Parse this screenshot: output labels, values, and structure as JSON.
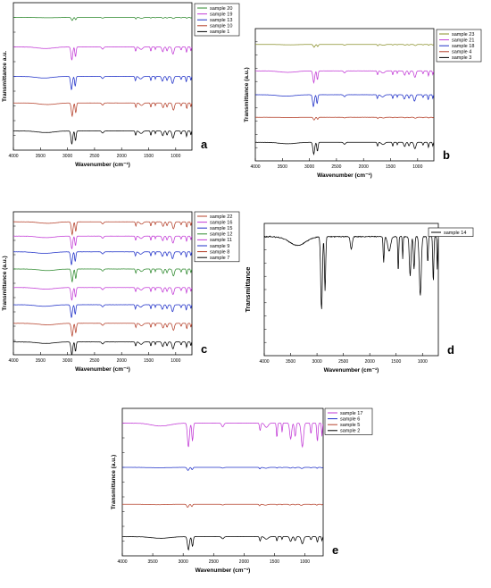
{
  "figure": {
    "panels": [
      {
        "id": "a",
        "letter": "a",
        "xlabel": "Wavenumber (cm⁻¹)",
        "ylabel": "Transmittance a.u.",
        "xticks": [
          "4000",
          "3500",
          "3000",
          "2500",
          "2000",
          "1500",
          "1000"
        ]
      },
      {
        "id": "b",
        "letter": "b",
        "xlabel": "Wavenumber (cm⁻¹)",
        "ylabel": "Transmittance (a.u.)",
        "xticks": [
          "4000",
          "3500",
          "3000",
          "2500",
          "2000",
          "1500",
          "1000"
        ]
      },
      {
        "id": "c",
        "letter": "c",
        "xlabel": "Wavenumber (cm⁻¹)",
        "ylabel": "Transmittance (a.u.)",
        "xticks": [
          "4000",
          "3500",
          "3000",
          "2500",
          "2000",
          "1500",
          "1000"
        ]
      },
      {
        "id": "d",
        "letter": "d",
        "xlabel": "Wavenumber (cm⁻¹)",
        "ylabel": "Transmittance",
        "xticks": [
          "4000",
          "3500",
          "3000",
          "2500",
          "2000",
          "1500",
          "1000"
        ]
      },
      {
        "id": "e",
        "letter": "e",
        "xlabel": "Wavenumber (cm⁻¹)",
        "ylabel": "Transmittance (a.u.)",
        "xticks": [
          "4000",
          "3500",
          "3000",
          "2500",
          "2000",
          "1500",
          "1000"
        ]
      }
    ]
  },
  "colors": {
    "black": "#000000",
    "red": "#b5402a",
    "blue": "#1f30c8",
    "magenta": "#c23ad6",
    "green": "#2f8a2f",
    "olive": "#8a8f2a"
  },
  "chart_data": [
    {
      "panel": "a",
      "type": "line",
      "xlim": [
        4000,
        700
      ],
      "xlabel": "Wavenumber (cm⁻¹)",
      "ylabel": "Transmittance a.u.",
      "legend_position": "top-right",
      "series": [
        {
          "name": "sample 20",
          "color": "#2f8a2f",
          "baseline": 0.9,
          "style": "flat"
        },
        {
          "name": "sample 19",
          "color": "#c23ad6",
          "baseline": 0.7,
          "style": "mid"
        },
        {
          "name": "sample 13",
          "color": "#1f30c8",
          "baseline": 0.5,
          "style": "mid"
        },
        {
          "name": "sample 10",
          "color": "#b5402a",
          "baseline": 0.32,
          "style": "mid"
        },
        {
          "name": "sample 1",
          "color": "#000000",
          "baseline": 0.13,
          "style": "mid"
        }
      ]
    },
    {
      "panel": "b",
      "type": "line",
      "xlim": [
        4000,
        700
      ],
      "xlabel": "Wavenumber (cm⁻¹)",
      "ylabel": "Transmittance (a.u.)",
      "legend_position": "top-right",
      "series": [
        {
          "name": "sample 23",
          "color": "#8a8f2a",
          "baseline": 0.88,
          "style": "flat"
        },
        {
          "name": "sample 21",
          "color": "#c23ad6",
          "baseline": 0.68,
          "style": "mid"
        },
        {
          "name": "sample 18",
          "color": "#1f30c8",
          "baseline": 0.5,
          "style": "mid"
        },
        {
          "name": "sample 4",
          "color": "#b5402a",
          "baseline": 0.33,
          "style": "flat"
        },
        {
          "name": "sample 3",
          "color": "#000000",
          "baseline": 0.14,
          "style": "mid"
        }
      ]
    },
    {
      "panel": "c",
      "type": "line",
      "xlim": [
        4000,
        700
      ],
      "xlabel": "Wavenumber (cm⁻¹)",
      "ylabel": "Transmittance (a.u.)",
      "legend_position": "top-right",
      "series": [
        {
          "name": "sample 22",
          "color": "#b5402a",
          "baseline": 0.93,
          "style": "mid"
        },
        {
          "name": "sample 16",
          "color": "#c23ad6",
          "baseline": 0.83,
          "style": "mid"
        },
        {
          "name": "sample 15",
          "color": "#1f30c8",
          "baseline": 0.72,
          "style": "mid"
        },
        {
          "name": "sample 12",
          "color": "#2f8a2f",
          "baseline": 0.6,
          "style": "mid"
        },
        {
          "name": "sample 11",
          "color": "#c23ad6",
          "baseline": 0.47,
          "style": "mid"
        },
        {
          "name": "sample 9",
          "color": "#1f30c8",
          "baseline": 0.35,
          "style": "mid"
        },
        {
          "name": "sample 8",
          "color": "#b5402a",
          "baseline": 0.22,
          "style": "mid"
        },
        {
          "name": "sample 7",
          "color": "#000000",
          "baseline": 0.09,
          "style": "mid"
        }
      ]
    },
    {
      "panel": "d",
      "type": "line",
      "xlim": [
        4000,
        700
      ],
      "xlabel": "Wavenumber (cm⁻¹)",
      "ylabel": "Transmittance",
      "legend_position": "top-right",
      "series": [
        {
          "name": "sample 14",
          "color": "#000000",
          "baseline": 0.9,
          "style": "deep"
        }
      ]
    },
    {
      "panel": "e",
      "type": "line",
      "xlim": [
        4000,
        700
      ],
      "xlabel": "Wavenumber (cm⁻¹)",
      "ylabel": "Transmittance (a.u.)",
      "legend_position": "top-right",
      "series": [
        {
          "name": "sample 17",
          "color": "#c23ad6",
          "baseline": 0.9,
          "style": "strong"
        },
        {
          "name": "sample 6",
          "color": "#1f30c8",
          "baseline": 0.6,
          "style": "flat"
        },
        {
          "name": "sample 5",
          "color": "#b5402a",
          "baseline": 0.35,
          "style": "flat"
        },
        {
          "name": "sample 2",
          "color": "#000000",
          "baseline": 0.13,
          "style": "mid"
        }
      ]
    }
  ]
}
